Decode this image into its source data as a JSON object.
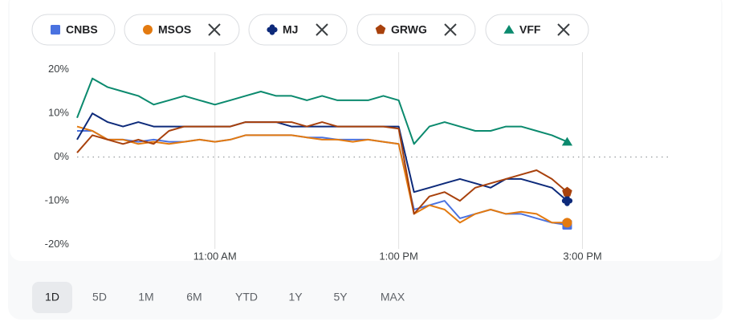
{
  "chart_data": {
    "type": "line",
    "x": [
      "9:30 AM",
      "9:40 AM",
      "9:50 AM",
      "10:00 AM",
      "10:10 AM",
      "10:20 AM",
      "10:30 AM",
      "10:40 AM",
      "10:50 AM",
      "11:00 AM",
      "11:10 AM",
      "11:20 AM",
      "11:30 AM",
      "11:40 AM",
      "11:50 AM",
      "12:00 PM",
      "12:10 PM",
      "12:20 PM",
      "12:30 PM",
      "12:40 PM",
      "12:50 PM",
      "1:00 PM",
      "1:10 PM",
      "1:20 PM",
      "1:30 PM",
      "1:40 PM",
      "1:50 PM",
      "2:00 PM",
      "2:10 PM",
      "2:20 PM",
      "2:30 PM",
      "2:40 PM",
      "2:50 PM"
    ],
    "xlim": [
      "9:30 AM",
      "4:00 PM"
    ],
    "xticks": [
      "11:00 AM",
      "1:00 PM",
      "3:00 PM"
    ],
    "ylim": [
      -21,
      24
    ],
    "yticks": [
      {
        "value": 20,
        "label": "20%"
      },
      {
        "value": 10,
        "label": "10%"
      },
      {
        "value": 0,
        "label": "0%"
      },
      {
        "value": -10,
        "label": "-10%"
      },
      {
        "value": -20,
        "label": "-20%"
      }
    ],
    "series": [
      {
        "name": "CNBS",
        "color": "#4a72e0",
        "marker": "square",
        "removable": false,
        "values": [
          6,
          6,
          4,
          4,
          3.5,
          4,
          3.5,
          3.5,
          4,
          3.5,
          4,
          5,
          5,
          5,
          5,
          4.5,
          4.5,
          4,
          4,
          4,
          3.5,
          3,
          -12,
          -11,
          -10,
          -14,
          -13,
          -12,
          -13,
          -13,
          -14,
          -15,
          -15.5
        ]
      },
      {
        "name": "MSOS",
        "color": "#e37a10",
        "marker": "circle",
        "removable": true,
        "values": [
          7,
          6,
          4,
          4,
          3,
          3.5,
          3,
          3.5,
          4,
          3.5,
          4,
          5,
          5,
          5,
          5,
          4.5,
          4,
          4,
          3.5,
          4,
          3.5,
          3,
          -13,
          -11,
          -12,
          -15,
          -13,
          -12,
          -13,
          -12.5,
          -13,
          -15,
          -15
        ]
      },
      {
        "name": "MJ",
        "color": "#0d2a7a",
        "marker": "clover",
        "removable": true,
        "values": [
          4,
          10,
          8,
          7,
          8,
          7,
          7,
          7,
          7,
          7,
          7,
          8,
          8,
          8,
          7,
          7,
          7,
          7,
          7,
          7,
          7,
          7,
          -8,
          -7,
          -6,
          -5,
          -6,
          -7,
          -5,
          -5,
          -6,
          -7,
          -10
        ]
      },
      {
        "name": "GRWG",
        "color": "#a8410c",
        "marker": "pentagon",
        "removable": true,
        "values": [
          1,
          5,
          4,
          3,
          4,
          3,
          6,
          7,
          7,
          7,
          7,
          8,
          8,
          8,
          8,
          7,
          8,
          7,
          7,
          7,
          7,
          6.5,
          -13,
          -9,
          -8,
          -10,
          -7,
          -6,
          -5,
          -4,
          -3,
          -5,
          -8
        ]
      },
      {
        "name": "VFF",
        "color": "#0b8a6e",
        "marker": "triangle",
        "removable": true,
        "values": [
          9,
          18,
          16,
          15,
          14,
          12,
          13,
          14,
          13,
          12,
          13,
          14,
          15,
          14,
          14,
          13,
          14,
          13,
          13,
          13,
          14,
          13,
          3,
          7,
          8,
          7,
          6,
          6,
          7,
          7,
          6,
          5,
          3.5
        ]
      }
    ],
    "ranges": [
      "1D",
      "5D",
      "1M",
      "6M",
      "YTD",
      "1Y",
      "5Y",
      "MAX"
    ],
    "selected_range": "1D"
  }
}
